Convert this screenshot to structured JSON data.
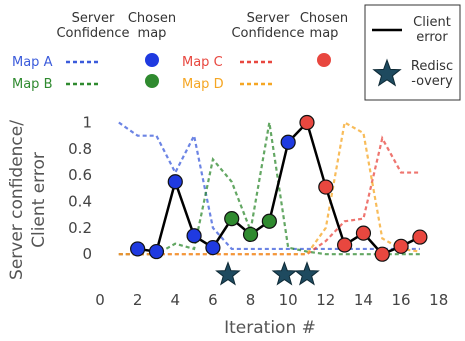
{
  "chart_data": {
    "type": "line",
    "xlabel": "Iteration #",
    "ylabel_lines": [
      "Server confidence/",
      "Client error"
    ],
    "xlim": [
      0,
      18.6
    ],
    "ylim": [
      -0.12,
      1.08
    ],
    "xticks": [
      0,
      2,
      4,
      6,
      8,
      10,
      12,
      14,
      16,
      18
    ],
    "yticks": [
      0,
      0.2,
      0.4,
      0.6,
      0.8,
      1
    ],
    "ytick_labels": [
      "0",
      "0.2",
      "0.4",
      "0.6",
      "0.8",
      "1"
    ],
    "grid": false,
    "legend": {
      "server_confidence_header": [
        "Server",
        "Confidence"
      ],
      "chosen_map_header": [
        "Chosen",
        "map"
      ],
      "client_error_label": [
        "Client",
        "error"
      ],
      "rediscovery_label": [
        "Redisc",
        "-overy"
      ]
    },
    "series": [
      {
        "name": "Map A",
        "color": "#3b5bdb",
        "x": [
          1,
          2,
          3,
          4,
          5,
          6,
          7,
          8,
          9,
          10,
          11,
          12,
          13,
          14,
          15,
          16,
          17
        ],
        "y": [
          1.0,
          0.9,
          0.9,
          0.62,
          0.9,
          0.2,
          0.04,
          0.04,
          0.04,
          0.04,
          0.04,
          0.04,
          0.04,
          0.04,
          0.04,
          0.04,
          0.04
        ]
      },
      {
        "name": "Map B",
        "color": "#2f8a2f",
        "x": [
          1,
          2,
          3,
          4,
          5,
          6,
          7,
          8,
          9,
          10,
          11,
          12,
          13,
          14,
          15,
          16,
          17
        ],
        "y": [
          0.0,
          0.0,
          0.0,
          0.08,
          0.04,
          0.72,
          0.55,
          0.18,
          1.0,
          0.05,
          0.02,
          0.0,
          0.0,
          0.0,
          0.0,
          0.0,
          0.0
        ]
      },
      {
        "name": "Map C",
        "color": "#e8473f",
        "x": [
          1,
          2,
          3,
          4,
          5,
          6,
          7,
          8,
          9,
          10,
          11,
          12,
          13,
          14,
          15,
          16,
          17
        ],
        "y": [
          0.0,
          0.0,
          0.0,
          0.0,
          0.0,
          0.0,
          0.0,
          0.0,
          0.0,
          0.0,
          0.0,
          0.1,
          0.25,
          0.27,
          0.88,
          0.62,
          0.62
        ]
      },
      {
        "name": "Map D",
        "color": "#f5a623",
        "x": [
          1,
          2,
          3,
          4,
          5,
          6,
          7,
          8,
          9,
          10,
          11,
          12,
          13,
          14,
          15,
          16,
          17
        ],
        "y": [
          0.0,
          0.0,
          0.0,
          0.0,
          0.0,
          0.0,
          0.0,
          0.0,
          0.0,
          0.0,
          0.0,
          0.2,
          1.0,
          0.92,
          0.12,
          0.04,
          0.02
        ]
      }
    ],
    "client_error": {
      "name": "Client error",
      "color": "#000000",
      "points": [
        {
          "x": 2,
          "y": 0.04,
          "map": "Map A"
        },
        {
          "x": 3,
          "y": 0.02,
          "map": "Map A"
        },
        {
          "x": 4,
          "y": 0.55,
          "map": "Map A"
        },
        {
          "x": 5,
          "y": 0.14,
          "map": "Map A"
        },
        {
          "x": 6,
          "y": 0.05,
          "map": "Map A"
        },
        {
          "x": 7,
          "y": 0.27,
          "map": "Map B"
        },
        {
          "x": 8,
          "y": 0.15,
          "map": "Map B"
        },
        {
          "x": 9,
          "y": 0.25,
          "map": "Map B"
        },
        {
          "x": 10,
          "y": 0.85,
          "map": "Map A"
        },
        {
          "x": 11,
          "y": 1.0,
          "map": "Map C"
        },
        {
          "x": 12,
          "y": 0.51,
          "map": "Map C"
        },
        {
          "x": 13,
          "y": 0.07,
          "map": "Map C"
        },
        {
          "x": 14,
          "y": 0.16,
          "map": "Map C"
        },
        {
          "x": 15,
          "y": 0.0,
          "map": "Map C"
        },
        {
          "x": 16,
          "y": 0.06,
          "map": "Map C"
        },
        {
          "x": 17,
          "y": 0.13,
          "map": "Map C"
        }
      ]
    },
    "rediscovery": {
      "name": "Rediscovery",
      "x": [
        6.8,
        9.8,
        11.0
      ],
      "y": -0.155,
      "color": "#1e4a5f"
    }
  }
}
